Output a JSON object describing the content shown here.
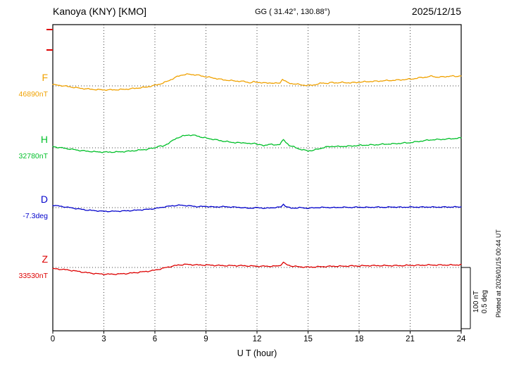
{
  "chart_data": {
    "type": "line",
    "station_label": "Kanoya (KNY)  [KMO]",
    "coords_label": "GG ( 31.42°, 130.88°)",
    "date_label": "2025/12/15",
    "xlabel": "U T (hour)",
    "x_ticks": [
      0,
      3,
      6,
      9,
      12,
      15,
      18,
      21,
      24
    ],
    "xlim": [
      0,
      24
    ],
    "grid": "dotted vertical every 3 hours, dotted baseline per trace",
    "scale_bar": {
      "nt": "100 nT",
      "deg": "0.5 deg",
      "bar_nT": 100,
      "bar_deg": 0.5
    },
    "plotted_at": "Plotted at 2026/01/15 00:44 UT",
    "note": "series points are [UT hour, offset from baseline value] in nT for F,H,Z and deg for D",
    "series": [
      {
        "name": "F",
        "baseline_label": "46890nT",
        "baseline_value": 46890,
        "unit": "nT",
        "color": "#f0a202",
        "points": [
          [
            0,
            2
          ],
          [
            0.5,
            0.5
          ],
          [
            1,
            -1.5
          ],
          [
            1.5,
            -3.5
          ],
          [
            2,
            -5
          ],
          [
            2.5,
            -6
          ],
          [
            3,
            -6.5
          ],
          [
            3.5,
            -6.5
          ],
          [
            4,
            -6
          ],
          [
            4.5,
            -5
          ],
          [
            5,
            -3.5
          ],
          [
            5.5,
            -2
          ],
          [
            6,
            1
          ],
          [
            6.3,
            3
          ],
          [
            6.7,
            7
          ],
          [
            7,
            11
          ],
          [
            7.3,
            15
          ],
          [
            7.6,
            18
          ],
          [
            8,
            19
          ],
          [
            8.4,
            18
          ],
          [
            8.8,
            16
          ],
          [
            9.2,
            14
          ],
          [
            9.6,
            12
          ],
          [
            10,
            10
          ],
          [
            10.5,
            8.5
          ],
          [
            11,
            7.5
          ],
          [
            11.3,
            7
          ],
          [
            11.6,
            5
          ],
          [
            11.8,
            6.5
          ],
          [
            12.2,
            5.5
          ],
          [
            12.5,
            4.5
          ],
          [
            12.8,
            5
          ],
          [
            13.1,
            4
          ],
          [
            13.35,
            5
          ],
          [
            13.5,
            11
          ],
          [
            13.65,
            8
          ],
          [
            13.8,
            5
          ],
          [
            14,
            4
          ],
          [
            14.4,
            2.5
          ],
          [
            14.7,
            1.5
          ],
          [
            15,
            0.5
          ],
          [
            15.3,
            1.5
          ],
          [
            15.6,
            3
          ],
          [
            15.9,
            5
          ],
          [
            16.1,
            4
          ],
          [
            16.4,
            5.5
          ],
          [
            16.7,
            5
          ],
          [
            17,
            5.5
          ],
          [
            17.5,
            5
          ],
          [
            18,
            6
          ],
          [
            18.5,
            7
          ],
          [
            19,
            7.5
          ],
          [
            19.5,
            8.5
          ],
          [
            20,
            9
          ],
          [
            20.5,
            10
          ],
          [
            21,
            11
          ],
          [
            21.3,
            12
          ],
          [
            21.6,
            13.5
          ],
          [
            22,
            14.5
          ],
          [
            22.3,
            16
          ],
          [
            22.6,
            14
          ],
          [
            23,
            15
          ],
          [
            23.4,
            16
          ],
          [
            23.7,
            15.5
          ],
          [
            24,
            16.5
          ]
        ]
      },
      {
        "name": "H",
        "baseline_label": "32780nT",
        "baseline_value": 32780,
        "unit": "nT",
        "color": "#02c02a",
        "points": [
          [
            0,
            2
          ],
          [
            0.5,
            0
          ],
          [
            1,
            -2
          ],
          [
            1.5,
            -4
          ],
          [
            2,
            -5.5
          ],
          [
            2.5,
            -6.5
          ],
          [
            3,
            -7
          ],
          [
            3.5,
            -7
          ],
          [
            4,
            -6.5
          ],
          [
            4.5,
            -5.5
          ],
          [
            5,
            -4
          ],
          [
            5.5,
            -2.5
          ],
          [
            6,
            0
          ],
          [
            6.2,
            3
          ],
          [
            6.45,
            2
          ],
          [
            6.7,
            6
          ],
          [
            7,
            11
          ],
          [
            7.3,
            16
          ],
          [
            7.6,
            19
          ],
          [
            8,
            21
          ],
          [
            8.4,
            20
          ],
          [
            8.8,
            17
          ],
          [
            9.2,
            15
          ],
          [
            9.6,
            13
          ],
          [
            10,
            11
          ],
          [
            10.5,
            9
          ],
          [
            11,
            8
          ],
          [
            11.3,
            8.5
          ],
          [
            11.6,
            6
          ],
          [
            11.85,
            8
          ],
          [
            12.1,
            5
          ],
          [
            12.4,
            3.5
          ],
          [
            12.7,
            6
          ],
          [
            13,
            4.5
          ],
          [
            13.35,
            6
          ],
          [
            13.55,
            13
          ],
          [
            13.7,
            9
          ],
          [
            13.9,
            4
          ],
          [
            14.2,
            1
          ],
          [
            14.5,
            -2
          ],
          [
            14.8,
            -4
          ],
          [
            15,
            -5
          ],
          [
            15.3,
            -4
          ],
          [
            15.6,
            -2
          ],
          [
            16,
            1
          ],
          [
            16.4,
            2.5
          ],
          [
            16.8,
            2
          ],
          [
            17.2,
            2.5
          ],
          [
            17.6,
            3
          ],
          [
            18,
            4
          ],
          [
            18.5,
            4.5
          ],
          [
            19,
            5
          ],
          [
            19.5,
            6
          ],
          [
            20,
            6.5
          ],
          [
            20.5,
            7.5
          ],
          [
            21,
            8.5
          ],
          [
            21.4,
            10
          ],
          [
            21.8,
            11.5
          ],
          [
            22.2,
            13
          ],
          [
            22.6,
            13.5
          ],
          [
            23,
            14
          ],
          [
            23.5,
            15
          ],
          [
            24,
            16
          ]
        ]
      },
      {
        "name": "D",
        "baseline_label": "-7.3deg",
        "baseline_value": -7.3,
        "unit": "deg",
        "color": "#0202cc",
        "points": [
          [
            0,
            0.02
          ],
          [
            0.5,
            0.01
          ],
          [
            1,
            0
          ],
          [
            1.5,
            -0.01
          ],
          [
            2,
            -0.02
          ],
          [
            2.5,
            -0.025
          ],
          [
            3,
            -0.03
          ],
          [
            3.5,
            -0.03
          ],
          [
            4,
            -0.028
          ],
          [
            4.5,
            -0.025
          ],
          [
            5,
            -0.02
          ],
          [
            5.5,
            -0.015
          ],
          [
            6,
            -0.008
          ],
          [
            6.5,
            0.005
          ],
          [
            7,
            0.015
          ],
          [
            7.5,
            0.02
          ],
          [
            8,
            0.015
          ],
          [
            8.5,
            0.008
          ],
          [
            9,
            0.01
          ],
          [
            9.5,
            0.005
          ],
          [
            10,
            0.008
          ],
          [
            10.5,
            0.005
          ],
          [
            11,
            0.002
          ],
          [
            11.5,
            -0.005
          ],
          [
            12,
            0
          ],
          [
            12.5,
            -0.005
          ],
          [
            13,
            0
          ],
          [
            13.4,
            0.005
          ],
          [
            13.55,
            0.028
          ],
          [
            13.7,
            0.01
          ],
          [
            14,
            -0.005
          ],
          [
            14.5,
            0
          ],
          [
            15,
            -0.005
          ],
          [
            15.5,
            0
          ],
          [
            16,
            0.002
          ],
          [
            16.5,
            0
          ],
          [
            17,
            0.003
          ],
          [
            17.5,
            0.002
          ],
          [
            18,
            0.004
          ],
          [
            18.5,
            0.002
          ],
          [
            19,
            0.004
          ],
          [
            19.5,
            0.003
          ],
          [
            20,
            0.005
          ],
          [
            20.5,
            0.003
          ],
          [
            21,
            0.005
          ],
          [
            21.5,
            0.004
          ],
          [
            22,
            0.005
          ],
          [
            22.5,
            0.004
          ],
          [
            23,
            0.005
          ],
          [
            23.5,
            0.005
          ],
          [
            24,
            0.006
          ]
        ]
      },
      {
        "name": "Z",
        "baseline_label": "33530nT",
        "baseline_value": 33530,
        "unit": "nT",
        "color": "#dd0000",
        "points": [
          [
            0,
            -2
          ],
          [
            0.5,
            -3
          ],
          [
            1,
            -4.5
          ],
          [
            1.5,
            -6.5
          ],
          [
            2,
            -8.5
          ],
          [
            2.5,
            -10
          ],
          [
            3,
            -11
          ],
          [
            3.5,
            -11
          ],
          [
            4,
            -10.5
          ],
          [
            4.5,
            -9.5
          ],
          [
            5,
            -8
          ],
          [
            5.5,
            -6.5
          ],
          [
            6,
            -4.5
          ],
          [
            6.3,
            -2.5
          ],
          [
            6.6,
            -0.5
          ],
          [
            7,
            2
          ],
          [
            7.4,
            4
          ],
          [
            7.8,
            5
          ],
          [
            8.2,
            4.5
          ],
          [
            8.6,
            4
          ],
          [
            9,
            4
          ],
          [
            9.5,
            3.5
          ],
          [
            10,
            3
          ],
          [
            10.5,
            3
          ],
          [
            11,
            3
          ],
          [
            11.5,
            2.5
          ],
          [
            12,
            2
          ],
          [
            12.5,
            2
          ],
          [
            13,
            2
          ],
          [
            13.35,
            3
          ],
          [
            13.55,
            8.5
          ],
          [
            13.7,
            5
          ],
          [
            14,
            2.5
          ],
          [
            14.5,
            1
          ],
          [
            15,
            0.5
          ],
          [
            15.5,
            1
          ],
          [
            16,
            1.5
          ],
          [
            16.5,
            2
          ],
          [
            17,
            2
          ],
          [
            17.5,
            2.5
          ],
          [
            18,
            2.5
          ],
          [
            18.5,
            3
          ],
          [
            19,
            3
          ],
          [
            19.5,
            3
          ],
          [
            20,
            3
          ],
          [
            20.5,
            3
          ],
          [
            21,
            3.5
          ],
          [
            21.5,
            3.5
          ],
          [
            22,
            4
          ],
          [
            22.5,
            4
          ],
          [
            23,
            4
          ],
          [
            23.5,
            4
          ],
          [
            24,
            4.5
          ]
        ]
      }
    ]
  }
}
